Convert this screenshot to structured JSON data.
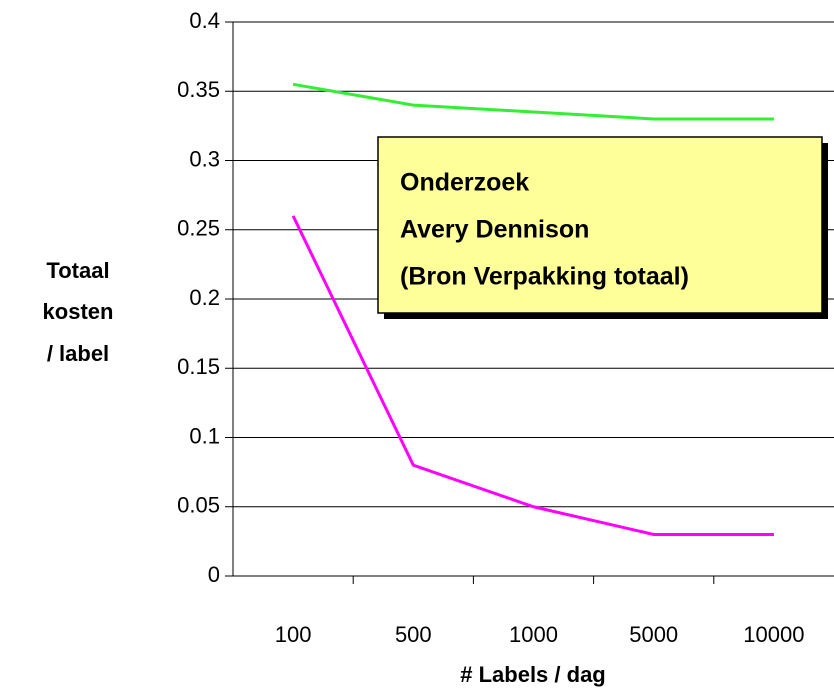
{
  "chart_data": {
    "type": "line",
    "ylabel": [
      "Totaal",
      "kosten",
      "/ label"
    ],
    "xlabel": "# Labels / dag",
    "categories": [
      "100",
      "500",
      "1000",
      "5000",
      "10000"
    ],
    "series": [
      {
        "color": "#33ee33",
        "values": [
          0.355,
          0.34,
          0.335,
          0.33,
          0.33
        ]
      },
      {
        "color": "#ff00ff",
        "values": [
          0.26,
          0.08,
          0.05,
          0.03,
          0.03
        ]
      }
    ],
    "ylim": [
      0,
      0.4
    ],
    "yticks": [
      0,
      0.05,
      0.1,
      0.15,
      0.2,
      0.25,
      0.3,
      0.35,
      0.4
    ],
    "grid": true,
    "annotation": [
      "Onderzoek",
      "Avery Dennison",
      "(Bron Verpakking totaal)"
    ]
  }
}
